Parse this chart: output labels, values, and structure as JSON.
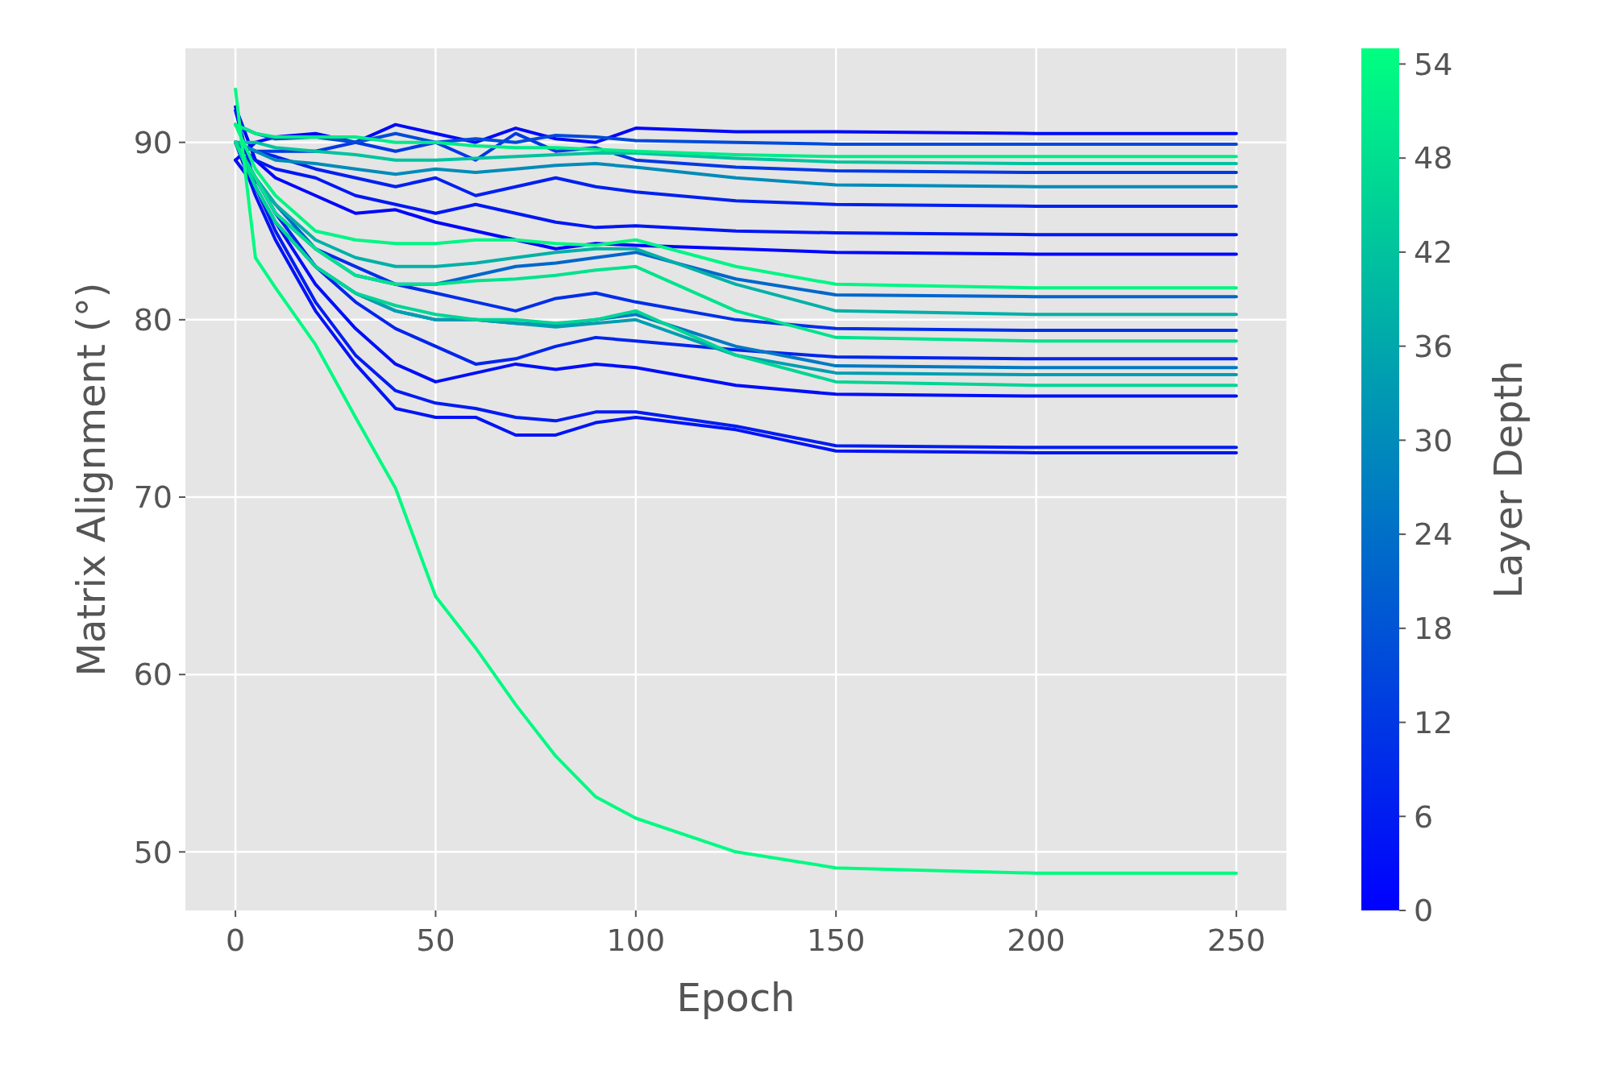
{
  "chart_data": {
    "type": "line",
    "xlabel": "Epoch",
    "ylabel": "Matrix Alignment (°)",
    "clabel": "Layer Depth",
    "x": [
      0,
      5,
      10,
      20,
      30,
      40,
      50,
      60,
      70,
      80,
      90,
      100,
      125,
      150,
      200,
      250
    ],
    "xlim": [
      -12.5,
      262.5
    ],
    "xticks": [
      0,
      50,
      100,
      150,
      200,
      250
    ],
    "ylim": [
      46.7,
      95.3
    ],
    "yticks": [
      50,
      60,
      70,
      80,
      90
    ],
    "clim": [
      0,
      55
    ],
    "cticks": [
      0,
      6,
      12,
      18,
      24,
      30,
      36,
      42,
      48,
      54
    ],
    "grid": true,
    "series": [
      {
        "color": "#0009fa",
        "values": [
          89,
          90,
          90.3,
          90.5,
          90,
          91,
          90.5,
          90,
          90.8,
          90.2,
          90,
          90.8,
          90.6,
          90.6,
          90.5,
          90.5
        ]
      },
      {
        "color": "#0013f6",
        "values": [
          90,
          87,
          84.5,
          80.5,
          77.5,
          75,
          74.5,
          74.5,
          73.5,
          73.5,
          74.2,
          74.5,
          73.8,
          72.6,
          72.5,
          72.5
        ]
      },
      {
        "color": "#001cf1",
        "values": [
          91.8,
          87.5,
          85,
          81,
          78,
          76,
          75.3,
          75,
          74.5,
          74.3,
          74.8,
          74.8,
          74,
          72.9,
          72.8,
          72.8
        ]
      },
      {
        "color": "#000ef8",
        "values": [
          89,
          87.5,
          85.5,
          82,
          79.5,
          77.5,
          76.5,
          77,
          77.5,
          77.2,
          77.5,
          77.3,
          76.3,
          75.8,
          75.7,
          75.7
        ]
      },
      {
        "color": "#0025ec",
        "values": [
          90,
          88,
          86,
          83,
          81,
          79.5,
          78.5,
          77.5,
          77.8,
          78.5,
          79,
          78.8,
          78.3,
          77.9,
          77.8,
          77.8
        ]
      },
      {
        "color": "#0005fd",
        "values": [
          92,
          89,
          88,
          87,
          86,
          86.2,
          85.5,
          85,
          84.5,
          84,
          84.3,
          84.2,
          84,
          83.8,
          83.7,
          83.7
        ]
      },
      {
        "color": "#0017f3",
        "values": [
          90,
          89,
          88.5,
          88,
          87,
          86.5,
          86,
          86.5,
          86,
          85.5,
          85.2,
          85.3,
          85,
          84.9,
          84.8,
          84.8
        ]
      },
      {
        "color": "#0020ef",
        "values": [
          90,
          89.5,
          89.2,
          88.5,
          88,
          87.5,
          88,
          87,
          87.5,
          88,
          87.5,
          87.2,
          86.7,
          86.5,
          86.4,
          86.4
        ]
      },
      {
        "color": "#002ee8",
        "values": [
          90,
          88,
          86,
          84,
          83,
          82,
          81.5,
          81,
          80.5,
          81.2,
          81.5,
          81,
          80,
          79.5,
          79.4,
          79.4
        ]
      },
      {
        "color": "#0038e3",
        "values": [
          90,
          89.5,
          89.5,
          89.5,
          90,
          89.5,
          90,
          89,
          90.5,
          89.5,
          89.7,
          89,
          88.6,
          88.4,
          88.3,
          88.3
        ]
      },
      {
        "color": "#004ada",
        "values": [
          91,
          90.5,
          90.2,
          90.3,
          90,
          90.5,
          90,
          90.2,
          90,
          90.4,
          90.3,
          90.1,
          90,
          89.9,
          89.9,
          89.9
        ]
      },
      {
        "color": "#0066cc",
        "values": [
          90,
          88,
          86.5,
          84,
          82.5,
          82,
          82,
          82.5,
          83,
          83.2,
          83.5,
          83.8,
          82.3,
          81.4,
          81.3,
          81.3
        ]
      },
      {
        "color": "#0079c3",
        "values": [
          90,
          87.5,
          85.5,
          83,
          81.5,
          80.5,
          80,
          80,
          79.8,
          79.7,
          80,
          80.3,
          78.5,
          77.4,
          77.3,
          77.3
        ]
      },
      {
        "color": "#008bb9",
        "values": [
          90,
          89.5,
          89,
          88.8,
          88.5,
          88.2,
          88.5,
          88.3,
          88.5,
          88.7,
          88.8,
          88.6,
          88,
          87.6,
          87.5,
          87.5
        ]
      },
      {
        "color": "#009eb0",
        "values": [
          90,
          87.5,
          85.5,
          83,
          81.5,
          80.5,
          80,
          80,
          79.8,
          79.6,
          79.8,
          80,
          78,
          77,
          76.9,
          76.9
        ]
      },
      {
        "color": "#00b0a7",
        "values": [
          90,
          88,
          86.5,
          84.5,
          83.5,
          83,
          83,
          83.2,
          83.5,
          83.8,
          84,
          84,
          82,
          80.5,
          80.3,
          80.3
        ]
      },
      {
        "color": "#00c39e",
        "values": [
          90,
          90,
          89.7,
          89.5,
          89.3,
          89,
          89,
          89.1,
          89.2,
          89.3,
          89.4,
          89.4,
          89.1,
          88.9,
          88.8,
          88.8
        ]
      },
      {
        "color": "#00d595",
        "values": [
          90,
          87.5,
          85.5,
          83,
          81.5,
          80.8,
          80.3,
          80,
          80,
          79.8,
          80,
          80.5,
          78,
          76.5,
          76.3,
          76.3
        ]
      },
      {
        "color": "#00e38d",
        "values": [
          90,
          88,
          86,
          84,
          82.5,
          82,
          82,
          82.2,
          82.3,
          82.5,
          82.8,
          83,
          80.5,
          79,
          78.8,
          78.8
        ]
      },
      {
        "color": "#00ec89",
        "values": [
          91,
          90.5,
          90.3,
          90.3,
          90.3,
          90,
          90,
          89.8,
          89.7,
          89.7,
          89.6,
          89.5,
          89.3,
          89.2,
          89.2,
          89.2
        ]
      },
      {
        "color": "#00f684",
        "values": [
          91,
          88.5,
          87,
          85,
          84.5,
          84.3,
          84.3,
          84.5,
          84.5,
          84.3,
          84.2,
          84.5,
          83,
          82,
          81.8,
          81.8
        ]
      },
      {
        "color": "#00fa82",
        "values": [
          93,
          83.5,
          81.8,
          78.6,
          74.5,
          70.5,
          64.4,
          61.5,
          58.3,
          55.4,
          53.1,
          51.9,
          50,
          49.1,
          48.8,
          48.8
        ]
      }
    ]
  }
}
